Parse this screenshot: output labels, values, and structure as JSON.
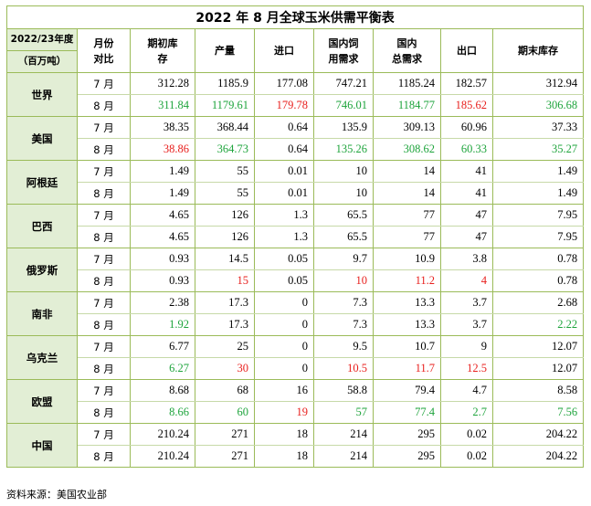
{
  "title": "2022 年 8 月全球玉米供需平衡表",
  "header": {
    "corner_line1": "2022/23年度",
    "corner_line2": "（百万吨）",
    "columns": [
      [
        "月份",
        "对比"
      ],
      [
        "期初库",
        "存"
      ],
      [
        "产量"
      ],
      [
        "进口"
      ],
      [
        "国内饲",
        "用需求"
      ],
      [
        "国内",
        "总需求"
      ],
      [
        "出口"
      ],
      [
        "期末库存"
      ]
    ]
  },
  "colors": {
    "red": "#e8201e",
    "green": "#1ea43c",
    "border": "#9bbb59",
    "label_bg": "#e2eed5"
  },
  "rows": [
    {
      "country": "世界",
      "data": [
        {
          "month": "7 月",
          "values": [
            "312.28",
            "1185.9",
            "177.08",
            "747.21",
            "1185.24",
            "182.57",
            "312.94"
          ],
          "colors": [
            "",
            "",
            "",
            "",
            "",
            "",
            ""
          ]
        },
        {
          "month": "8 月",
          "values": [
            "311.84",
            "1179.61",
            "179.78",
            "746.01",
            "1184.77",
            "185.62",
            "306.68"
          ],
          "colors": [
            "green",
            "green",
            "red",
            "green",
            "green",
            "red",
            "green"
          ]
        }
      ]
    },
    {
      "country": "美国",
      "data": [
        {
          "month": "7 月",
          "values": [
            "38.35",
            "368.44",
            "0.64",
            "135.9",
            "309.13",
            "60.96",
            "37.33"
          ],
          "colors": [
            "",
            "",
            "",
            "",
            "",
            "",
            ""
          ]
        },
        {
          "month": "8 月",
          "values": [
            "38.86",
            "364.73",
            "0.64",
            "135.26",
            "308.62",
            "60.33",
            "35.27"
          ],
          "colors": [
            "red",
            "green",
            "",
            "green",
            "green",
            "green",
            "green"
          ]
        }
      ]
    },
    {
      "country": "阿根廷",
      "data": [
        {
          "month": "7 月",
          "values": [
            "1.49",
            "55",
            "0.01",
            "10",
            "14",
            "41",
            "1.49"
          ],
          "colors": [
            "",
            "",
            "",
            "",
            "",
            "",
            ""
          ]
        },
        {
          "month": "8 月",
          "values": [
            "1.49",
            "55",
            "0.01",
            "10",
            "14",
            "41",
            "1.49"
          ],
          "colors": [
            "",
            "",
            "",
            "",
            "",
            "",
            ""
          ]
        }
      ]
    },
    {
      "country": "巴西",
      "data": [
        {
          "month": "7 月",
          "values": [
            "4.65",
            "126",
            "1.3",
            "65.5",
            "77",
            "47",
            "7.95"
          ],
          "colors": [
            "",
            "",
            "",
            "",
            "",
            "",
            ""
          ]
        },
        {
          "month": "8 月",
          "values": [
            "4.65",
            "126",
            "1.3",
            "65.5",
            "77",
            "47",
            "7.95"
          ],
          "colors": [
            "",
            "",
            "",
            "",
            "",
            "",
            ""
          ]
        }
      ]
    },
    {
      "country": "俄罗斯",
      "data": [
        {
          "month": "7 月",
          "values": [
            "0.93",
            "14.5",
            "0.05",
            "9.7",
            "10.9",
            "3.8",
            "0.78"
          ],
          "colors": [
            "",
            "",
            "",
            "",
            "",
            "",
            ""
          ]
        },
        {
          "month": "8 月",
          "values": [
            "0.93",
            "15",
            "0.05",
            "10",
            "11.2",
            "4",
            "0.78"
          ],
          "colors": [
            "",
            "red",
            "",
            "red",
            "red",
            "red",
            ""
          ]
        }
      ]
    },
    {
      "country": "南非",
      "data": [
        {
          "month": "7 月",
          "values": [
            "2.38",
            "17.3",
            "0",
            "7.3",
            "13.3",
            "3.7",
            "2.68"
          ],
          "colors": [
            "",
            "",
            "",
            "",
            "",
            "",
            ""
          ]
        },
        {
          "month": "8 月",
          "values": [
            "1.92",
            "17.3",
            "0",
            "7.3",
            "13.3",
            "3.7",
            "2.22"
          ],
          "colors": [
            "green",
            "",
            "",
            "",
            "",
            "",
            "green"
          ]
        }
      ]
    },
    {
      "country": "乌克兰",
      "data": [
        {
          "month": "7 月",
          "values": [
            "6.77",
            "25",
            "0",
            "9.5",
            "10.7",
            "9",
            "12.07"
          ],
          "colors": [
            "",
            "",
            "",
            "",
            "",
            "",
            ""
          ]
        },
        {
          "month": "8 月",
          "values": [
            "6.27",
            "30",
            "0",
            "10.5",
            "11.7",
            "12.5",
            "12.07"
          ],
          "colors": [
            "green",
            "red",
            "",
            "red",
            "red",
            "red",
            ""
          ]
        }
      ]
    },
    {
      "country": "欧盟",
      "data": [
        {
          "month": "7 月",
          "values": [
            "8.68",
            "68",
            "16",
            "58.8",
            "79.4",
            "4.7",
            "8.58"
          ],
          "colors": [
            "",
            "",
            "",
            "",
            "",
            "",
            ""
          ]
        },
        {
          "month": "8 月",
          "values": [
            "8.66",
            "60",
            "19",
            "57",
            "77.4",
            "2.7",
            "7.56"
          ],
          "colors": [
            "green",
            "green",
            "red",
            "green",
            "green",
            "green",
            "green"
          ]
        }
      ]
    },
    {
      "country": "中国",
      "data": [
        {
          "month": "7 月",
          "values": [
            "210.24",
            "271",
            "18",
            "214",
            "295",
            "0.02",
            "204.22"
          ],
          "colors": [
            "",
            "",
            "",
            "",
            "",
            "",
            ""
          ]
        },
        {
          "month": "8 月",
          "values": [
            "210.24",
            "271",
            "18",
            "214",
            "295",
            "0.02",
            "204.22"
          ],
          "colors": [
            "",
            "",
            "",
            "",
            "",
            "",
            ""
          ]
        }
      ]
    }
  ],
  "source": "资料来源：美国农业部"
}
